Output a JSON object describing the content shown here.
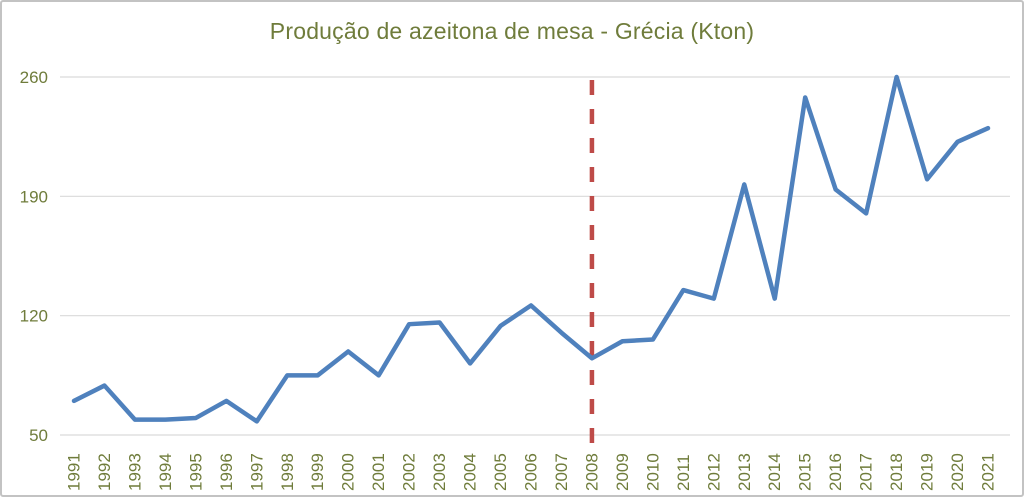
{
  "chart_data": {
    "type": "line",
    "title": "Produção de azeitona de mesa - Grécia (Kton)",
    "x": [
      1991,
      1992,
      1993,
      1994,
      1995,
      1996,
      1997,
      1998,
      1999,
      2000,
      2001,
      2002,
      2003,
      2004,
      2005,
      2006,
      2007,
      2008,
      2009,
      2010,
      2011,
      2012,
      2013,
      2014,
      2015,
      2016,
      2017,
      2018,
      2019,
      2020,
      2021
    ],
    "values": [
      70,
      79,
      59,
      59,
      60,
      70,
      58,
      85,
      85,
      99,
      85,
      115,
      116,
      92,
      114,
      126,
      110,
      95,
      105,
      106,
      135,
      130,
      197,
      130,
      248,
      194,
      180,
      260,
      200,
      222,
      230
    ],
    "xlabel": "",
    "ylabel": "",
    "ylim": [
      50,
      260
    ],
    "yticks": [
      50,
      120,
      190,
      260
    ],
    "grid": "horizontal",
    "legend": "none",
    "annotations": [
      {
        "type": "vline",
        "x": 2008,
        "style": "dashed"
      }
    ]
  },
  "colors": {
    "series_line": "#4F81BD",
    "reference_line": "#BE4B48",
    "axis_text": "#6F7C3B",
    "title_text": "#6F7C3B",
    "gridline": "#D9D9D9",
    "background": "#FFFFFF"
  }
}
